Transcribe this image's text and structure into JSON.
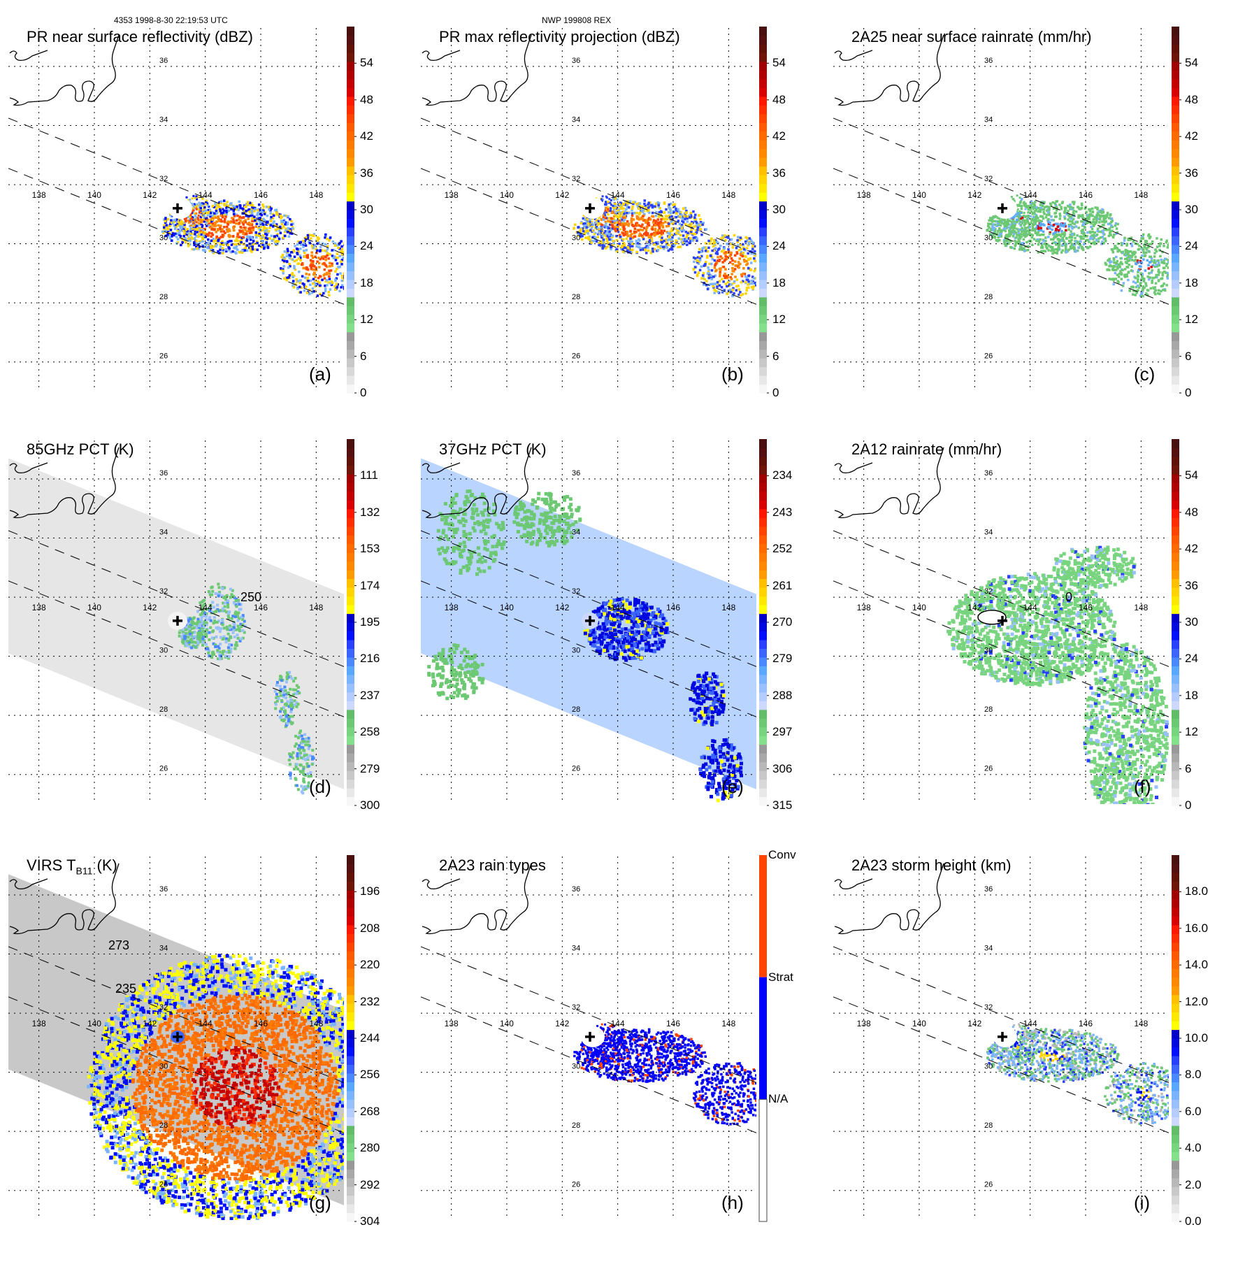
{
  "header": {
    "orbit_time": "4353 1998-8-30 22:19:53 UTC",
    "storm_id": "NWP 199808 REX"
  },
  "map": {
    "lon_ticks": [
      138,
      140,
      142,
      144,
      146,
      148
    ],
    "lat_ticks": [
      36,
      34,
      32,
      30,
      28,
      26
    ],
    "lon_range": [
      136.9,
      149.0
    ],
    "lat_range": [
      25.0,
      37.3
    ],
    "storm_center": {
      "lon": 143.0,
      "lat": 31.2
    },
    "pr_swath_edges": "dashed lines",
    "grid": "dotted"
  },
  "colors": {
    "ramp": [
      "#f7f7f7",
      "#e8e8e8",
      "#d8d8d8",
      "#c8c8c8",
      "#b8b8b8",
      "#a8a8a8",
      "#989898",
      "#84e08a",
      "#78d47e",
      "#6cc872",
      "#62bc68",
      "#ccd8ff",
      "#b4ccff",
      "#98c0ff",
      "#7ab4ff",
      "#58a8ff",
      "#4a88ff",
      "#3c64ff",
      "#2a40ff",
      "#0010ff",
      "#0008e0",
      "#0000c8",
      "#ffff00",
      "#ffe800",
      "#ffd400",
      "#ffc000",
      "#ff9a00",
      "#ff8800",
      "#ff7a00",
      "#ff6a00",
      "#ff5a00",
      "#ff4400",
      "#ff2e00",
      "#ff1800",
      "#d80000",
      "#c40000",
      "#b00000",
      "#a00000",
      "#6e1408",
      "#601208",
      "#541010",
      "#4a1010"
    ],
    "rain_type_conv": "#ff4400",
    "rain_type_strat": "#0000ff",
    "rain_type_na": "#ffffff"
  },
  "chart_data": [
    {
      "id": "a",
      "type": "heatmap",
      "panel_label": "(a)",
      "title": "PR near surface reflectivity (dBZ)",
      "colorbar": {
        "ticks": [
          "0",
          "6",
          "12",
          "18",
          "24",
          "30",
          "36",
          "42",
          "48",
          "54"
        ],
        "range": [
          0,
          60
        ]
      },
      "coverage": "PR swath only",
      "peak_region": "orange/red eyewall east of center, 36-48 dBZ"
    },
    {
      "id": "b",
      "type": "heatmap",
      "panel_label": "(b)",
      "title": "PR max reflectivity projection (dBZ)",
      "colorbar": {
        "ticks": [
          "0",
          "6",
          "12",
          "18",
          "24",
          "30",
          "36",
          "42",
          "48",
          "54"
        ],
        "range": [
          0,
          60
        ]
      },
      "coverage": "PR swath only, contoured",
      "peak_region": "orange/red eyewall east of center"
    },
    {
      "id": "c",
      "type": "heatmap",
      "panel_label": "(c)",
      "title": "2A25 near surface rainrate (mm/hr)",
      "colorbar": {
        "ticks": [
          "0",
          "6",
          "12",
          "18",
          "24",
          "30",
          "36",
          "42",
          "48",
          "54"
        ],
        "range": [
          0,
          60
        ]
      },
      "coverage": "PR swath only, contoured",
      "peak_region": "red near eyewall, mostly green 0-6 mm/hr"
    },
    {
      "id": "d",
      "type": "heatmap",
      "panel_label": "(d)",
      "title": "85GHz PCT (K)",
      "colorbar": {
        "ticks": [
          "300",
          "279",
          "258",
          "237",
          "216",
          "195",
          "174",
          "153",
          "132",
          "111"
        ],
        "range": [
          300,
          90
        ]
      },
      "contour_label": "250",
      "coverage": "TMI swath",
      "peak_region": "green/blue bands east of center, 195-250 K"
    },
    {
      "id": "e",
      "type": "heatmap",
      "panel_label": "(e)",
      "title": "37GHz PCT (K)",
      "colorbar": {
        "ticks": [
          "315",
          "306",
          "297",
          "288",
          "279",
          "270",
          "261",
          "252",
          "243",
          "234"
        ],
        "range": [
          315,
          225
        ]
      },
      "coverage": "TMI swath",
      "peak_region": "dark blue ring with yellow pixels near 261 K"
    },
    {
      "id": "f",
      "type": "heatmap",
      "panel_label": "(f)",
      "title": "2A12 rainrate (mm/hr)",
      "colorbar": {
        "ticks": [
          "0",
          "6",
          "12",
          "18",
          "24",
          "30",
          "36",
          "42",
          "48",
          "54"
        ],
        "range": [
          0,
          60
        ]
      },
      "contour_label": "0",
      "coverage": "TMI swath, contoured",
      "peak_region": "green 0-6 mm/hr broad area, blue pixels near center"
    },
    {
      "id": "g",
      "type": "heatmap",
      "panel_label": "(g)",
      "title": "VIRS T",
      "title_sub": "B11",
      "title_suffix": " (K)",
      "colorbar": {
        "ticks": [
          "304",
          "292",
          "280",
          "268",
          "256",
          "244",
          "232",
          "220",
          "208",
          "196"
        ],
        "range": [
          304,
          184
        ]
      },
      "contour_labels": [
        "273",
        "235"
      ],
      "coverage": "VIRS swath",
      "peak_region": "orange/red cold cloud tops 196-232 K over storm"
    },
    {
      "id": "h",
      "type": "heatmap",
      "panel_label": "(h)",
      "title": "2A23 rain types",
      "colorbar": {
        "categories": [
          "N/A",
          "Strat",
          "Conv"
        ],
        "type": "categorical"
      },
      "coverage": "PR swath only",
      "peak_region": "mostly stratiform (blue) with convective (orange) eyewall"
    },
    {
      "id": "i",
      "type": "heatmap",
      "panel_label": "(i)",
      "title": "2A23 storm height (km)",
      "colorbar": {
        "ticks": [
          "0.0",
          "2.0",
          "4.0",
          "6.0",
          "8.0",
          "10.0",
          "12.0",
          "14.0",
          "16.0",
          "18.0"
        ],
        "range": [
          0,
          20
        ]
      },
      "coverage": "PR swath only",
      "peak_region": "yellow/orange 12-14 km at eyewall, blue 8-10 km bands"
    }
  ]
}
